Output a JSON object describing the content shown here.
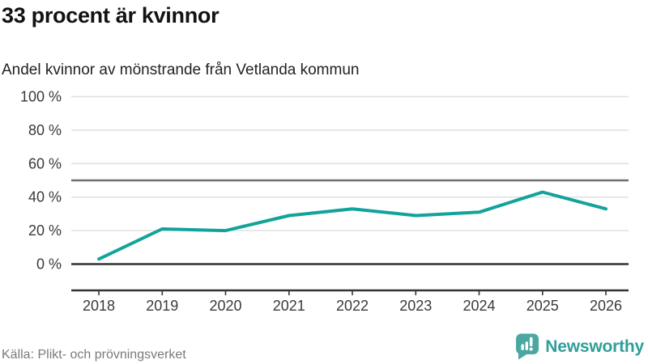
{
  "header": {
    "title": "33 procent är kvinnor",
    "subtitle": "Andel kvinnor av mönstrande från Vetlanda kommun"
  },
  "chart_data": {
    "type": "line",
    "title": "Andel kvinnor av mönstrande från Vetlanda kommun",
    "x": [
      2018,
      2019,
      2020,
      2021,
      2022,
      2023,
      2024,
      2025,
      2026
    ],
    "series": [
      {
        "name": "Andel kvinnor (%)",
        "values": [
          3,
          21,
          20,
          29,
          33,
          29,
          31,
          43,
          33
        ]
      }
    ],
    "yticks": [
      0,
      20,
      40,
      60,
      80,
      100
    ],
    "ytick_labels": [
      "0 %",
      "20 %",
      "40 %",
      "60 %",
      "80 %",
      "100 %"
    ],
    "ylim": [
      0,
      100
    ],
    "reference_line": 50,
    "unit": "%",
    "grid": "horizontal",
    "legend": "none"
  },
  "footer": {
    "source": "Källa: Plikt- och prövningsverket",
    "brand": "Newsworthy"
  },
  "icons": {
    "brand_icon": "newsworthy-speech-bubble-chart-icon"
  },
  "colors": {
    "line": "#12a39b",
    "grid": "#dedede",
    "reference": "#6f6f6f",
    "axis": "#333333",
    "tick_text": "#3a3a3a",
    "source_text": "#7a7a7a",
    "brand": "#2f9e99",
    "brand_icon": "#4aa7a1",
    "background": "#ffffff"
  }
}
